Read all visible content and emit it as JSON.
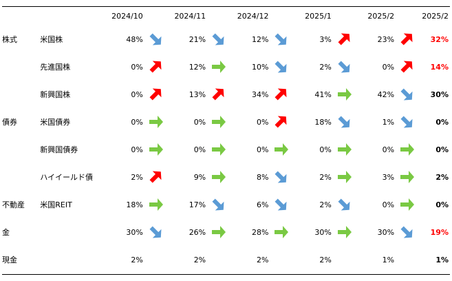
{
  "header": {
    "months": [
      "2024/10",
      "2024/11",
      "2024/12",
      "2025/1",
      "2025/2"
    ],
    "latest": "2025/2"
  },
  "colors": {
    "up": "#ff0000",
    "down": "#5b9bd5",
    "flat": "#7ac943",
    "highlight": "#ff0000"
  },
  "rows": [
    {
      "category": "株式",
      "asset": "米国株",
      "values": [
        "48%",
        "21%",
        "12%",
        "3%",
        "23%"
      ],
      "arrows": [
        "down",
        "down",
        "down",
        "up",
        "up"
      ],
      "latest": "32%",
      "latest_highlight": true
    },
    {
      "category": "",
      "asset": "先進国株",
      "values": [
        "0%",
        "12%",
        "10%",
        "2%",
        "0%"
      ],
      "arrows": [
        "up",
        "flat",
        "down",
        "down",
        "up"
      ],
      "latest": "14%",
      "latest_highlight": true
    },
    {
      "category": "",
      "asset": "新興国株",
      "values": [
        "0%",
        "13%",
        "34%",
        "41%",
        "42%"
      ],
      "arrows": [
        "up",
        "up",
        "up",
        "flat",
        "down"
      ],
      "latest": "30%",
      "latest_highlight": false
    },
    {
      "category": "債券",
      "asset": "米国債券",
      "values": [
        "0%",
        "0%",
        "0%",
        "18%",
        "1%"
      ],
      "arrows": [
        "flat",
        "flat",
        "up",
        "down",
        "down"
      ],
      "latest": "0%",
      "latest_highlight": false
    },
    {
      "category": "",
      "asset": "新興国債券",
      "values": [
        "0%",
        "0%",
        "0%",
        "0%",
        "0%"
      ],
      "arrows": [
        "flat",
        "flat",
        "flat",
        "flat",
        "flat"
      ],
      "latest": "0%",
      "latest_highlight": false
    },
    {
      "category": "",
      "asset": "ハイイールド債",
      "values": [
        "2%",
        "9%",
        "8%",
        "2%",
        "3%"
      ],
      "arrows": [
        "up",
        "flat",
        "down",
        "flat",
        "flat"
      ],
      "latest": "2%",
      "latest_highlight": false
    },
    {
      "category": "不動産",
      "asset": "米国REIT",
      "values": [
        "18%",
        "17%",
        "6%",
        "2%",
        "0%"
      ],
      "arrows": [
        "flat",
        "down",
        "down",
        "down",
        "flat"
      ],
      "latest": "0%",
      "latest_highlight": false
    },
    {
      "category": "金",
      "asset": "",
      "values": [
        "30%",
        "26%",
        "28%",
        "30%",
        "30%"
      ],
      "arrows": [
        "down",
        "flat",
        "flat",
        "flat",
        "down"
      ],
      "latest": "19%",
      "latest_highlight": true
    },
    {
      "category": "現金",
      "asset": "",
      "values": [
        "2%",
        "2%",
        "2%",
        "2%",
        "1%"
      ],
      "arrows": [
        "",
        "",
        "",
        "",
        ""
      ],
      "latest": "1%",
      "latest_highlight": false
    }
  ]
}
